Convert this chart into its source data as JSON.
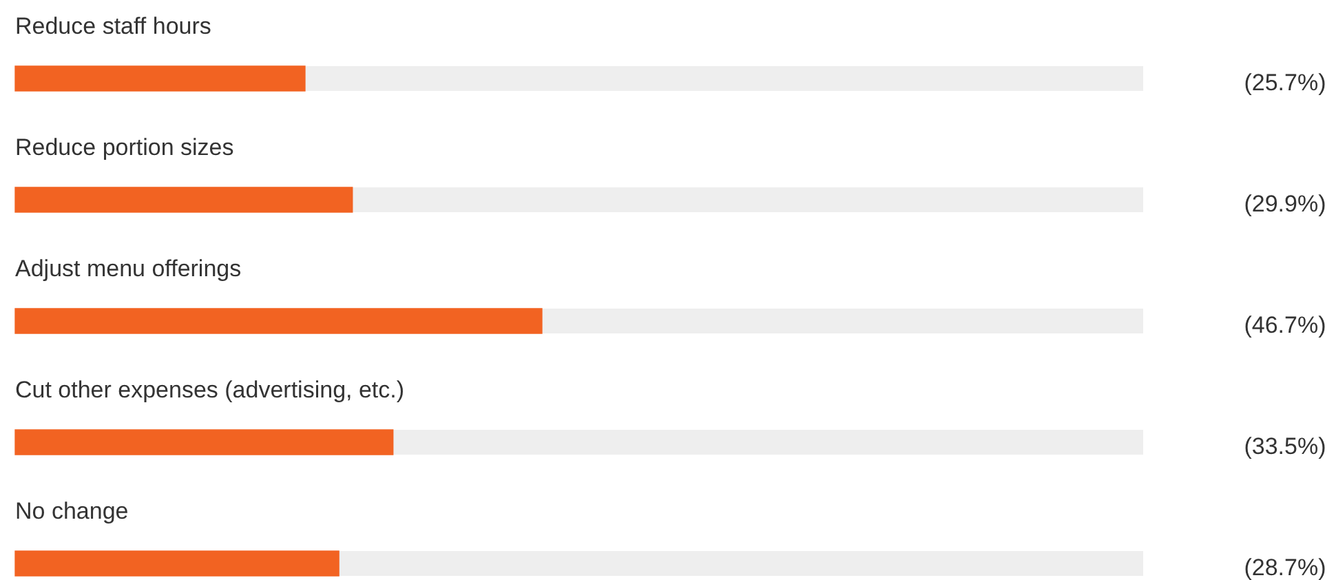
{
  "chart_data": {
    "type": "bar",
    "orientation": "horizontal",
    "categories": [
      "Reduce staff hours",
      "Reduce portion sizes",
      "Adjust menu offerings",
      "Cut other expenses (advertising, etc.)",
      "No change"
    ],
    "values": [
      25.7,
      29.9,
      46.7,
      33.5,
      28.7
    ],
    "value_labels": [
      "(25.7%)",
      "(29.9%)",
      "(46.7%)",
      "(33.5%)",
      "(28.7%)"
    ],
    "color": "#f26322",
    "xlim": [
      0,
      100
    ],
    "tick_labels": false,
    "legend": false
  }
}
